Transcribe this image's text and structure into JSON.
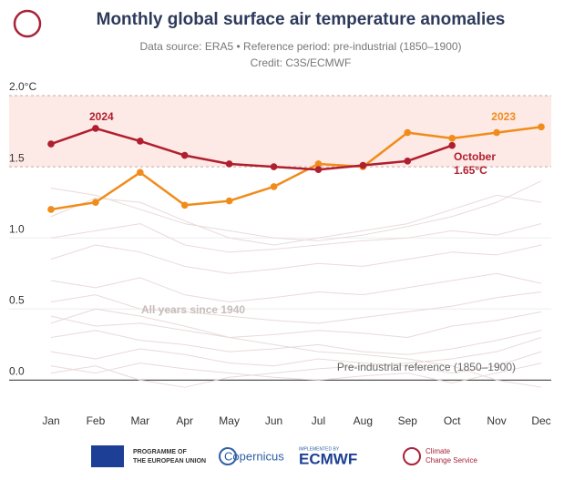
{
  "chart_data": {
    "type": "line",
    "title": "Monthly global surface air temperature anomalies",
    "subtitle": "Data source: ERA5 • Reference period: pre-industrial (1850–1900)",
    "credit": "Credit: C3S/ECMWF",
    "categories": [
      "Jan",
      "Feb",
      "Mar",
      "Apr",
      "May",
      "Jun",
      "Jul",
      "Aug",
      "Sep",
      "Oct",
      "Nov",
      "Dec"
    ],
    "series": [
      {
        "name": "2024",
        "color": "#b01f2e",
        "values": [
          1.66,
          1.77,
          1.68,
          1.58,
          1.52,
          1.5,
          1.48,
          1.51,
          1.54,
          1.65,
          null,
          null
        ]
      },
      {
        "name": "2023",
        "color": "#f08c1a",
        "values": [
          1.2,
          1.25,
          1.46,
          1.23,
          1.26,
          1.36,
          1.52,
          1.5,
          1.74,
          1.7,
          1.74,
          1.78
        ]
      }
    ],
    "background_series": [
      [
        1.35,
        1.3,
        1.2,
        1.1,
        1.05,
        1.0,
        0.98,
        1.02,
        1.08,
        1.15,
        1.25,
        1.4
      ],
      [
        1.15,
        1.28,
        1.25,
        1.12,
        1.0,
        0.95,
        1.0,
        1.05,
        1.1,
        1.2,
        1.3,
        1.25
      ],
      [
        1.0,
        1.05,
        1.1,
        0.95,
        0.9,
        0.92,
        0.95,
        0.98,
        1.0,
        1.05,
        1.02,
        1.1
      ],
      [
        0.85,
        0.95,
        0.9,
        0.8,
        0.75,
        0.78,
        0.82,
        0.8,
        0.85,
        0.9,
        0.88,
        0.95
      ],
      [
        0.7,
        0.65,
        0.72,
        0.6,
        0.55,
        0.58,
        0.62,
        0.6,
        0.65,
        0.7,
        0.75,
        0.68
      ],
      [
        0.55,
        0.6,
        0.5,
        0.48,
        0.45,
        0.42,
        0.4,
        0.44,
        0.48,
        0.52,
        0.58,
        0.62
      ],
      [
        0.45,
        0.38,
        0.4,
        0.35,
        0.3,
        0.32,
        0.35,
        0.33,
        0.3,
        0.38,
        0.42,
        0.48
      ],
      [
        0.3,
        0.35,
        0.28,
        0.25,
        0.2,
        0.22,
        0.25,
        0.2,
        0.18,
        0.22,
        0.28,
        0.35
      ],
      [
        0.2,
        0.15,
        0.22,
        0.18,
        0.12,
        0.1,
        0.15,
        0.12,
        0.1,
        0.05,
        0.1,
        0.2
      ],
      [
        0.1,
        0.05,
        0.12,
        0.08,
        0.05,
        0.02,
        0.0,
        0.03,
        0.05,
        -0.02,
        0.05,
        0.12
      ],
      [
        0.4,
        0.5,
        0.45,
        0.38,
        0.3,
        0.25,
        0.2,
        0.18,
        0.15,
        0.1,
        0.0,
        -0.05
      ],
      [
        0.05,
        0.1,
        0.0,
        -0.05,
        0.02,
        0.05,
        0.08,
        0.1,
        0.12,
        0.15,
        0.2,
        0.3
      ]
    ],
    "background_color": "#e9dada",
    "target_band": [
      1.5,
      2.0
    ],
    "ylim": [
      -0.1,
      2.0
    ],
    "yticks": [
      {
        "value": 0,
        "label": "0.0"
      },
      0.5,
      {
        "value": 1,
        "label": "1.0"
      },
      1.5,
      {
        "value": 2,
        "label": "2.0°C"
      }
    ],
    "annotations": [
      "2024",
      "2023",
      "October",
      "1.65°C",
      "All years since 1940",
      "Pre-industrial reference (1850–1900)"
    ]
  },
  "footer": {
    "eu": [
      "PROGRAMME OF",
      "THE EUROPEAN UNION"
    ],
    "copernicus": "Copernicus",
    "implemented": "IMPLEMENTED BY",
    "ecmwf": "ECMWF",
    "c3s": [
      "Climate",
      "Change Service"
    ]
  }
}
